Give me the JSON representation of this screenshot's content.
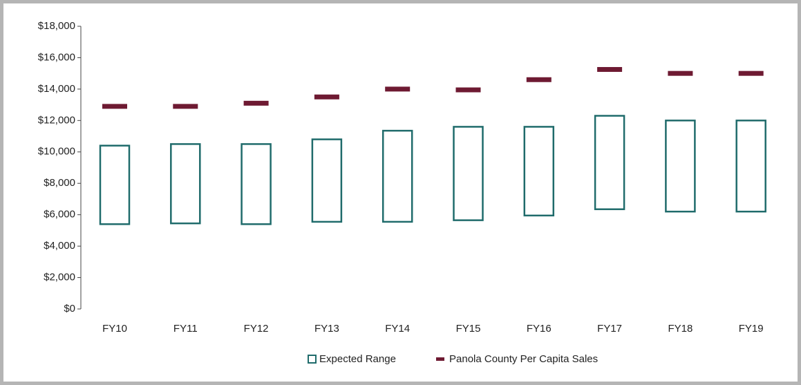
{
  "chart_data": {
    "type": "range_bar",
    "categories": [
      "FY10",
      "FY11",
      "FY12",
      "FY13",
      "FY14",
      "FY15",
      "FY16",
      "FY17",
      "FY18",
      "FY19"
    ],
    "series": [
      {
        "name": "Expected Range",
        "color": "#1f6b6b",
        "low": [
          5400,
          5450,
          5400,
          5550,
          5550,
          5650,
          5950,
          6350,
          6200,
          6200
        ],
        "high": [
          10400,
          10500,
          10500,
          10800,
          11350,
          11600,
          11600,
          12300,
          12000,
          12000
        ]
      },
      {
        "name": "Panola County Per Capita Sales",
        "color": "#6e1a32",
        "values": [
          12900,
          12900,
          13100,
          13500,
          14000,
          13950,
          14600,
          15250,
          15000,
          15000
        ]
      }
    ],
    "ylim": [
      0,
      18000
    ],
    "yticks": [
      {
        "value": 0,
        "label": "$0"
      },
      {
        "value": 2000,
        "label": "$2,000"
      },
      {
        "value": 4000,
        "label": "$4,000"
      },
      {
        "value": 6000,
        "label": "$6,000"
      },
      {
        "value": 8000,
        "label": "$8,000"
      },
      {
        "value": 10000,
        "label": "$10,000"
      },
      {
        "value": 12000,
        "label": "$12,000"
      },
      {
        "value": 14000,
        "label": "$14,000"
      },
      {
        "value": 16000,
        "label": "$16,000"
      },
      {
        "value": 18000,
        "label": "$18,000"
      }
    ],
    "grid": false,
    "legend": "bottom"
  }
}
